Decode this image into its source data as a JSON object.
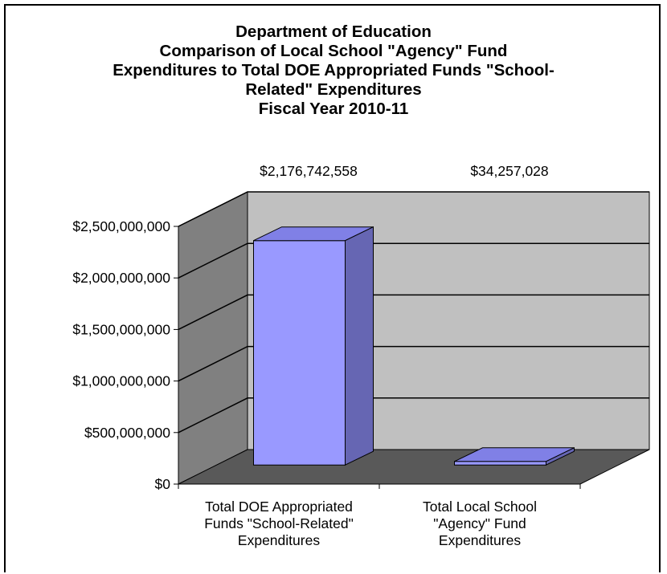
{
  "chart_data": {
    "type": "bar",
    "title_lines": [
      "Department of Education",
      "Comparison of Local School \"Agency\" Fund",
      "Expenditures to Total DOE Appropriated Funds \"School-",
      "Related\" Expenditures",
      "Fiscal Year 2010-11"
    ],
    "categories": [
      [
        "Total DOE Appropriated",
        "Funds \"School-Related\"",
        "Expenditures"
      ],
      [
        "Total Local School",
        "\"Agency\" Fund",
        "Expenditures"
      ]
    ],
    "values": [
      2176742558,
      34257028
    ],
    "data_labels": [
      "$2,176,742,558",
      "$34,257,028"
    ],
    "ylim": [
      0,
      2500000000
    ],
    "yticks": [
      {
        "value": 0,
        "label": "$0"
      },
      {
        "value": 500000000,
        "label": "$500,000,000"
      },
      {
        "value": 1000000000,
        "label": "$1,000,000,000"
      },
      {
        "value": 1500000000,
        "label": "$1,500,000,000"
      },
      {
        "value": 2000000000,
        "label": "$2,000,000,000"
      },
      {
        "value": 2500000000,
        "label": "$2,500,000,000"
      }
    ],
    "style": "3d",
    "grid": true,
    "colors": {
      "bar_front": "#9999FF",
      "bar_top": "#8080E6",
      "bar_side": "#6666B3",
      "back_wall": "#C0C0C0",
      "side_wall": "#808080",
      "floor": "#595959"
    }
  }
}
